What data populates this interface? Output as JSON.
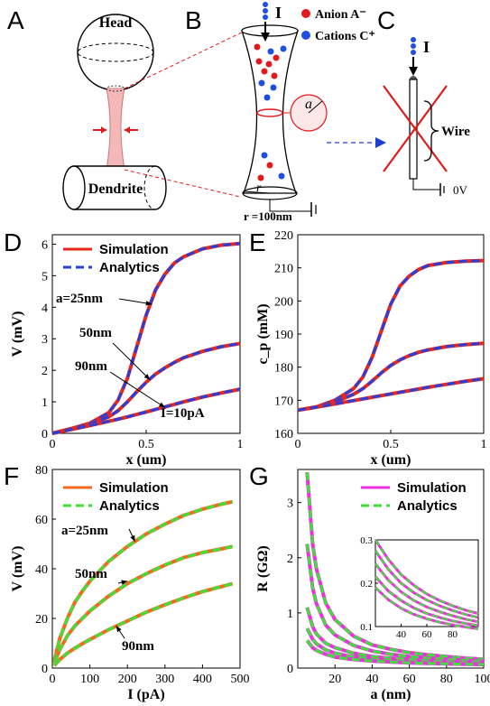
{
  "panel_labels": [
    "A",
    "B",
    "C",
    "D",
    "E",
    "F",
    "G"
  ],
  "schematic": {
    "head": "Head",
    "dendrite": "Dendrite",
    "current": "I",
    "anion": "Anion A⁻",
    "cation": "Cations C⁺",
    "a": "a",
    "r": "r",
    "r_value": "r =100nm",
    "wire": "Wire",
    "ground": "0V",
    "colors": {
      "anion": "#e31a1c",
      "cation": "#1f4fe0",
      "neck": "#f4b8b8",
      "red_marks": "#e31a1c",
      "blue_arrow": "#1f3fd0"
    }
  },
  "chart_data": [
    {
      "panel": "D",
      "type": "line",
      "xlabel": "x (um)",
      "ylabel": "V (mV)",
      "xlim": [
        0,
        1
      ],
      "ylim": [
        0,
        6.3
      ],
      "xticks": [
        "0",
        "0.5",
        "1"
      ],
      "yticks": [
        "0",
        "1",
        "2",
        "3",
        "4",
        "5",
        "6"
      ],
      "legend": [
        "Simulation",
        "Analytics"
      ],
      "legend_position": "top-left",
      "annotations": [
        "a=25nm",
        "50nm",
        "90nm",
        "I=10pA"
      ],
      "x": [
        0,
        0.1,
        0.2,
        0.3,
        0.35,
        0.4,
        0.45,
        0.5,
        0.55,
        0.6,
        0.65,
        0.7,
        0.8,
        0.9,
        1.0
      ],
      "series": [
        {
          "values": [
            0,
            0.15,
            0.32,
            0.65,
            1.05,
            1.75,
            2.75,
            3.75,
            4.55,
            5.05,
            5.4,
            5.6,
            5.85,
            5.97,
            6.02
          ]
        },
        {
          "values": [
            0,
            0.15,
            0.3,
            0.52,
            0.72,
            1.0,
            1.32,
            1.62,
            1.88,
            2.08,
            2.25,
            2.4,
            2.6,
            2.75,
            2.85
          ]
        },
        {
          "values": [
            0,
            0.12,
            0.25,
            0.38,
            0.45,
            0.52,
            0.6,
            0.68,
            0.76,
            0.84,
            0.92,
            1.0,
            1.15,
            1.28,
            1.4
          ]
        }
      ],
      "colors": {
        "simulation": "#e8261e",
        "analytics": "#2a3fd8"
      }
    },
    {
      "panel": "E",
      "type": "line",
      "xlabel": "x (um)",
      "ylabel": "c_p (mM)",
      "xlim": [
        0,
        1
      ],
      "ylim": [
        160,
        220
      ],
      "xticks": [
        "0",
        "0.5",
        "1"
      ],
      "yticks": [
        "160",
        "170",
        "180",
        "190",
        "200",
        "210",
        "220"
      ],
      "x": [
        0,
        0.1,
        0.2,
        0.3,
        0.35,
        0.4,
        0.45,
        0.5,
        0.55,
        0.6,
        0.65,
        0.7,
        0.8,
        0.9,
        1.0
      ],
      "series": [
        {
          "values": [
            167,
            168,
            170,
            173.5,
            177,
            183,
            191,
            199,
            204.5,
            207.5,
            209.5,
            210.7,
            211.6,
            212,
            212.2
          ]
        },
        {
          "values": [
            167,
            168,
            169.5,
            171.8,
            173.5,
            175.8,
            178.3,
            180.5,
            182.2,
            183.5,
            184.5,
            185.2,
            186.2,
            186.8,
            187.2
          ]
        },
        {
          "values": [
            167,
            167.9,
            168.9,
            169.9,
            170.4,
            170.9,
            171.4,
            171.9,
            172.4,
            172.9,
            173.4,
            173.9,
            174.8,
            175.7,
            176.5
          ]
        }
      ],
      "colors": {
        "simulation": "#e8261e",
        "analytics": "#2a3fd8"
      }
    },
    {
      "panel": "F",
      "type": "line",
      "xlabel": "I (pA)",
      "ylabel": "V (mV)",
      "xlim": [
        0,
        500
      ],
      "ylim": [
        0,
        80
      ],
      "xticks": [
        "0",
        "100",
        "200",
        "300",
        "400",
        "500"
      ],
      "yticks": [
        "0",
        "20",
        "40",
        "60",
        "80"
      ],
      "legend": [
        "Simulation",
        "Analytics"
      ],
      "legend_position": "top-left",
      "annotations": [
        "a=25nm",
        "50nm",
        "90nm"
      ],
      "x": [
        5,
        20,
        40,
        60,
        80,
        100,
        150,
        200,
        250,
        300,
        350,
        400,
        450,
        480
      ],
      "series": [
        {
          "values": [
            3,
            12,
            20,
            26.5,
            31,
            35,
            43,
            49,
            54,
            58,
            61.5,
            64,
            66,
            67
          ]
        },
        {
          "values": [
            2,
            7.5,
            13,
            17,
            20,
            23,
            29,
            34,
            38,
            41.5,
            44.5,
            46.5,
            48,
            49
          ]
        },
        {
          "values": [
            1,
            3.5,
            6,
            8,
            9.8,
            11.5,
            15.5,
            19,
            22.5,
            25.5,
            28.3,
            30.8,
            32.8,
            34
          ]
        }
      ],
      "colors": {
        "simulation": "#f36a1b",
        "analytics": "#3ee03a"
      }
    },
    {
      "panel": "G",
      "type": "line",
      "xlabel": "a (nm)",
      "ylabel": "R (GΩ)",
      "xlim": [
        0,
        100
      ],
      "ylim": [
        0,
        3.6
      ],
      "xticks": [
        "20",
        "40",
        "60",
        "80",
        "100"
      ],
      "yticks": [
        "0",
        "1",
        "2",
        "3"
      ],
      "legend": [
        "Simulation",
        "Analytics"
      ],
      "legend_position": "top-right",
      "x": [
        5,
        8,
        10,
        15,
        20,
        30,
        40,
        50,
        60,
        70,
        80,
        90,
        100
      ],
      "series": [
        {
          "values": [
            3.55,
            2.25,
            1.8,
            1.18,
            0.88,
            0.58,
            0.42,
            0.34,
            0.28,
            0.24,
            0.21,
            0.18,
            0.16
          ]
        },
        {
          "values": [
            2.25,
            1.45,
            1.17,
            0.78,
            0.6,
            0.41,
            0.31,
            0.25,
            0.21,
            0.18,
            0.16,
            0.14,
            0.13
          ]
        },
        {
          "values": [
            1.1,
            0.75,
            0.62,
            0.45,
            0.37,
            0.27,
            0.21,
            0.18,
            0.155,
            0.135,
            0.12,
            0.11,
            0.1
          ]
        },
        {
          "values": [
            0.72,
            0.52,
            0.44,
            0.33,
            0.27,
            0.2,
            0.165,
            0.14,
            0.12,
            0.105,
            0.095,
            0.087,
            0.08
          ]
        },
        {
          "values": [
            0.5,
            0.37,
            0.32,
            0.25,
            0.2,
            0.155,
            0.13,
            0.11,
            0.095,
            0.085,
            0.077,
            0.07,
            0.065
          ]
        }
      ],
      "inset": {
        "xlim": [
          20,
          100
        ],
        "ylim": [
          0.1,
          0.3
        ],
        "xticks": [
          "40",
          "60",
          "80"
        ],
        "yticks": [
          "0.1",
          "0.2",
          "0.3"
        ],
        "x": [
          20,
          30,
          40,
          50,
          60,
          70,
          80,
          90,
          100
        ],
        "series": [
          {
            "values": [
              0.3,
              0.255,
              0.22,
              0.195,
              0.175,
              0.16,
              0.148,
              0.138,
              0.13
            ]
          },
          {
            "values": [
              0.275,
              0.232,
              0.2,
              0.178,
              0.161,
              0.148,
              0.137,
              0.128,
              0.121
            ]
          },
          {
            "values": [
              0.245,
              0.207,
              0.18,
              0.16,
              0.145,
              0.134,
              0.125,
              0.117,
              0.111
            ]
          },
          {
            "values": [
              0.215,
              0.182,
              0.16,
              0.143,
              0.13,
              0.121,
              0.113,
              0.107,
              0.102
            ]
          },
          {
            "values": [
              0.19,
              0.162,
              0.142,
              0.128,
              0.118,
              0.11,
              0.104,
              0.099,
              0.095
            ]
          }
        ]
      },
      "colors": {
        "simulation": "#ee2fe0",
        "analytics": "#3ee03a"
      }
    }
  ]
}
